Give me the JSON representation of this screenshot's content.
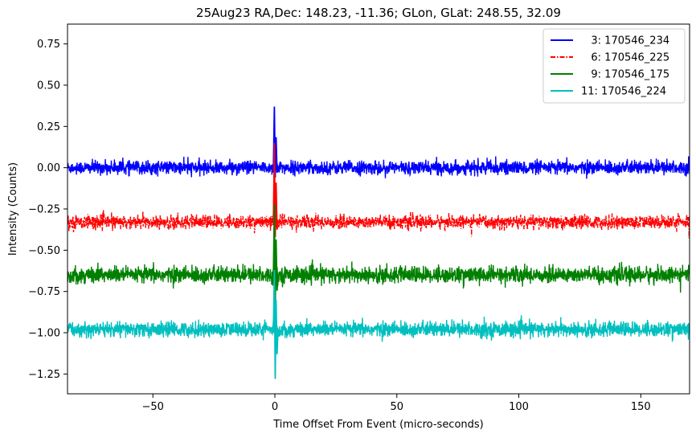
{
  "chart_data": {
    "type": "line",
    "title": "25Aug23 RA,Dec:  148.23, -11.36; GLon, GLat:  248.55,  32.09",
    "xlabel": "Time Offset From Event (micro-seconds)",
    "ylabel": "Intensity (Counts)",
    "xlim": [
      -85,
      170
    ],
    "ylim": [
      -1.37,
      0.87
    ],
    "xticks": [
      -50,
      0,
      50,
      100,
      150
    ],
    "yticks": [
      0.75,
      0.5,
      0.25,
      0.0,
      -0.25,
      -0.5,
      -0.75,
      -1.0,
      -1.25
    ],
    "xtick_labels": [
      "−50",
      "0",
      "50",
      "100",
      "150"
    ],
    "ytick_labels": [
      "0.75",
      "0.50",
      "0.25",
      "0.00",
      "−0.25",
      "−0.50",
      "−0.75",
      "−1.00",
      "−1.25"
    ],
    "grid": false,
    "legend_position": "top-right",
    "series": [
      {
        "name": "3: 170546_234",
        "legend": "   3: 170546_234",
        "color": "#0000ff",
        "linestyle": "solid",
        "baseline": 0.0,
        "noise_amplitude": 0.045,
        "event_peak": 0.37,
        "event_dip": -0.06
      },
      {
        "name": "6: 170546_225",
        "legend": "   6: 170546_225",
        "color": "#ff0000",
        "linestyle": "dashdot",
        "baseline": -0.33,
        "noise_amplitude": 0.045,
        "event_peak": 0.15,
        "event_dip": -0.42
      },
      {
        "name": "9: 170546_175",
        "legend": "   9: 170546_175",
        "color": "#008000",
        "linestyle": "solid",
        "baseline": -0.65,
        "noise_amplitude": 0.055,
        "event_peak": -0.22,
        "event_dip": -0.84
      },
      {
        "name": "11: 170546_224",
        "legend": "11: 170546_224",
        "color": "#00bfbf",
        "linestyle": "solid",
        "baseline": -0.98,
        "noise_amplitude": 0.05,
        "event_peak": -0.62,
        "event_dip": -1.28
      }
    ]
  }
}
